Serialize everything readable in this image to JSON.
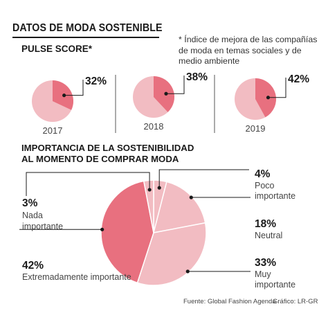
{
  "header": {
    "title": "DATOS DE MODA SOSTENIBLE",
    "pulse_title": "PULSE SCORE*",
    "note": "* Índice de mejora de las compañías de moda en temas sociales y de medio ambiente",
    "section2_line1": "IMPORTANCIA DE LA SOSTENIBILIDAD",
    "section2_line2": "AL MOMENTO DE COMPRAR MODA"
  },
  "footer": {
    "source": "Fuente: Global Fashion Agenda",
    "credit": "Gráfico: LR-GR"
  },
  "colors": {
    "dark_pink": "#e8707f",
    "light_pink": "#f2bcc2",
    "divider": "#555555"
  },
  "chart_data": [
    {
      "type": "pie",
      "title": "PULSE SCORE*",
      "categories": [
        "2017",
        "2018",
        "2019"
      ],
      "values": [
        32,
        38,
        42
      ],
      "value_labels": [
        "32%",
        "38%",
        "42%"
      ],
      "unit": "%"
    },
    {
      "type": "pie",
      "title": "IMPORTANCIA DE LA SOSTENIBILIDAD AL MOMENTO DE COMPRAR MODA",
      "slices": [
        {
          "label": "Poco importante",
          "value": 4,
          "value_label": "4%"
        },
        {
          "label": "Neutral",
          "value": 18,
          "value_label": "18%"
        },
        {
          "label": "Muy importante",
          "value": 33,
          "value_label": "33%"
        },
        {
          "label": "Extremadamente importante",
          "value": 42,
          "value_label": "42%"
        },
        {
          "label": "Nada importante",
          "value": 3,
          "value_label": "3%"
        }
      ],
      "unit": "%"
    }
  ]
}
